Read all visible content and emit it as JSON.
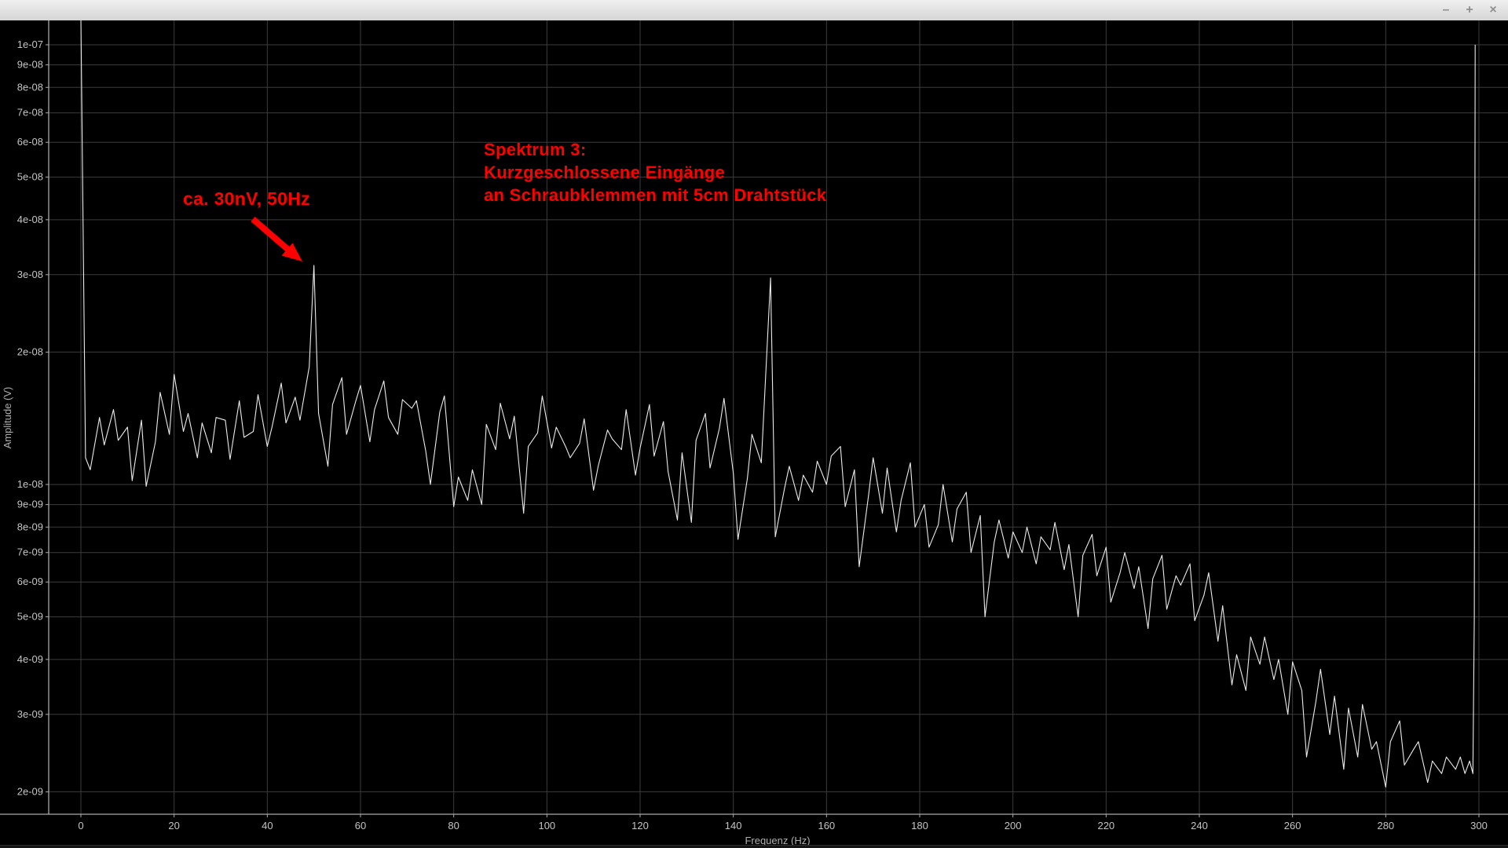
{
  "window": {
    "titlebar": {
      "minimize_label": "–",
      "maximize_label": "+",
      "close_label": "×"
    }
  },
  "annotations": {
    "color": "#ff0000",
    "peak_label": {
      "text": "ca. 30nV, 50Hz"
    },
    "title_block": {
      "lines": [
        "Spektrum 3:",
        "Kurzgeschlossene Eingänge",
        "an Schraubklemmen mit 5cm Drahtstück"
      ]
    }
  },
  "chart_data": {
    "type": "line",
    "title": "",
    "xlabel": "Frequenz (Hz)",
    "ylabel": "Amplitude (V)",
    "grid": true,
    "y_scale": "log",
    "xlim": [
      -7,
      306
    ],
    "ylim": [
      1.8e-09,
      1.15e-07
    ],
    "colors": {
      "background": "#000000",
      "trace": "#ebebeb",
      "grid": "#3c3c3c",
      "axis": "#aaaaaa",
      "tick_label": "#c4c4c4",
      "axis_title": "#b0b0b0"
    },
    "x_ticks": [
      {
        "value": 0,
        "label": "0"
      },
      {
        "value": 20,
        "label": "20"
      },
      {
        "value": 40,
        "label": "40"
      },
      {
        "value": 60,
        "label": "60"
      },
      {
        "value": 80,
        "label": "80"
      },
      {
        "value": 100,
        "label": "100"
      },
      {
        "value": 120,
        "label": "120"
      },
      {
        "value": 140,
        "label": "140"
      },
      {
        "value": 160,
        "label": "160"
      },
      {
        "value": 180,
        "label": "180"
      },
      {
        "value": 200,
        "label": "200"
      },
      {
        "value": 220,
        "label": "220"
      },
      {
        "value": 240,
        "label": "240"
      },
      {
        "value": 260,
        "label": "260"
      },
      {
        "value": 280,
        "label": "280"
      },
      {
        "value": 300,
        "label": "300"
      }
    ],
    "y_ticks": [
      {
        "value": 1e-07,
        "label": "1e-07"
      },
      {
        "value": 9e-08,
        "label": "9e-08"
      },
      {
        "value": 8e-08,
        "label": "8e-08"
      },
      {
        "value": 7e-08,
        "label": "7e-08"
      },
      {
        "value": 6e-08,
        "label": "6e-08"
      },
      {
        "value": 5e-08,
        "label": "5e-08"
      },
      {
        "value": 4e-08,
        "label": "4e-08"
      },
      {
        "value": 3e-08,
        "label": "3e-08"
      },
      {
        "value": 2e-08,
        "label": "2e-08"
      },
      {
        "value": 1e-08,
        "label": "1e-08"
      },
      {
        "value": 9e-09,
        "label": "9e-09"
      },
      {
        "value": 8e-09,
        "label": "8e-09"
      },
      {
        "value": 7e-09,
        "label": "7e-09"
      },
      {
        "value": 6e-09,
        "label": "6e-09"
      },
      {
        "value": 5e-09,
        "label": "5e-09"
      },
      {
        "value": 4e-09,
        "label": "4e-09"
      },
      {
        "value": 3e-09,
        "label": "3e-09"
      },
      {
        "value": 2e-09,
        "label": "2e-09"
      }
    ],
    "series": [
      {
        "name": "Spektrum 3",
        "color": "#ebebeb",
        "points_hz_nv": [
          [
            0,
            115
          ],
          [
            1,
            11.5
          ],
          [
            2,
            10.8
          ],
          [
            4,
            14.2
          ],
          [
            5,
            12.3
          ],
          [
            7,
            14.8
          ],
          [
            8,
            12.6
          ],
          [
            10,
            13.5
          ],
          [
            11,
            10.2
          ],
          [
            13,
            14.0
          ],
          [
            14,
            9.9
          ],
          [
            16,
            12.5
          ],
          [
            17,
            16.2
          ],
          [
            19,
            13.0
          ],
          [
            20,
            17.8
          ],
          [
            22,
            13.2
          ],
          [
            23,
            14.5
          ],
          [
            25,
            11.5
          ],
          [
            26,
            13.8
          ],
          [
            28,
            11.8
          ],
          [
            29,
            14.2
          ],
          [
            31,
            14.0
          ],
          [
            32,
            11.4
          ],
          [
            34,
            15.5
          ],
          [
            35,
            12.8
          ],
          [
            37,
            13.2
          ],
          [
            38,
            16.0
          ],
          [
            40,
            12.2
          ],
          [
            41,
            13.5
          ],
          [
            43,
            17.0
          ],
          [
            44,
            13.8
          ],
          [
            46,
            15.8
          ],
          [
            47,
            14.0
          ],
          [
            49,
            18.5
          ],
          [
            50,
            31.5
          ],
          [
            51,
            14.5
          ],
          [
            53,
            11.0
          ],
          [
            54,
            15.2
          ],
          [
            56,
            17.5
          ],
          [
            57,
            13.0
          ],
          [
            59,
            15.5
          ],
          [
            60,
            16.8
          ],
          [
            62,
            12.5
          ],
          [
            63,
            14.8
          ],
          [
            65,
            17.2
          ],
          [
            66,
            14.2
          ],
          [
            68,
            13.0
          ],
          [
            69,
            15.6
          ],
          [
            71,
            14.9
          ],
          [
            72,
            15.5
          ],
          [
            74,
            11.9
          ],
          [
            75,
            10.0
          ],
          [
            77,
            14.6
          ],
          [
            78,
            15.9
          ],
          [
            80,
            8.9
          ],
          [
            81,
            10.4
          ],
          [
            83,
            9.2
          ],
          [
            84,
            10.8
          ],
          [
            86,
            9.0
          ],
          [
            87,
            13.7
          ],
          [
            89,
            12.0
          ],
          [
            90,
            15.3
          ],
          [
            92,
            12.7
          ],
          [
            93,
            14.3
          ],
          [
            95,
            8.6
          ],
          [
            96,
            12.2
          ],
          [
            98,
            13.1
          ],
          [
            99,
            15.9
          ],
          [
            101,
            12.1
          ],
          [
            102,
            13.5
          ],
          [
            104,
            12.2
          ],
          [
            105,
            11.5
          ],
          [
            107,
            12.4
          ],
          [
            108,
            14.1
          ],
          [
            110,
            9.7
          ],
          [
            111,
            11.0
          ],
          [
            113,
            13.3
          ],
          [
            114,
            12.7
          ],
          [
            116,
            12.0
          ],
          [
            117,
            14.8
          ],
          [
            119,
            10.5
          ],
          [
            120,
            12.1
          ],
          [
            122,
            15.2
          ],
          [
            123,
            11.6
          ],
          [
            125,
            13.9
          ],
          [
            126,
            10.7
          ],
          [
            128,
            8.3
          ],
          [
            129,
            11.8
          ],
          [
            131,
            8.2
          ],
          [
            132,
            12.6
          ],
          [
            134,
            14.5
          ],
          [
            135,
            10.9
          ],
          [
            137,
            13.4
          ],
          [
            138,
            15.7
          ],
          [
            140,
            10.6
          ],
          [
            141,
            7.5
          ],
          [
            143,
            10.3
          ],
          [
            144,
            13.0
          ],
          [
            146,
            11.2
          ],
          [
            148,
            29.5
          ],
          [
            149,
            7.6
          ],
          [
            151,
            9.8
          ],
          [
            152,
            11.0
          ],
          [
            154,
            9.2
          ],
          [
            155,
            10.5
          ],
          [
            157,
            9.6
          ],
          [
            158,
            11.3
          ],
          [
            160,
            10.0
          ],
          [
            161,
            11.6
          ],
          [
            163,
            12.2
          ],
          [
            164,
            8.9
          ],
          [
            166,
            10.8
          ],
          [
            167,
            6.5
          ],
          [
            169,
            9.4
          ],
          [
            170,
            11.5
          ],
          [
            172,
            8.6
          ],
          [
            173,
            10.9
          ],
          [
            175,
            7.8
          ],
          [
            176,
            9.2
          ],
          [
            178,
            11.2
          ],
          [
            179,
            8.0
          ],
          [
            181,
            9.0
          ],
          [
            182,
            7.2
          ],
          [
            184,
            8.1
          ],
          [
            185,
            10.0
          ],
          [
            187,
            7.4
          ],
          [
            188,
            8.8
          ],
          [
            190,
            9.6
          ],
          [
            191,
            7.0
          ],
          [
            193,
            8.5
          ],
          [
            194,
            5.0
          ],
          [
            196,
            7.4
          ],
          [
            197,
            8.3
          ],
          [
            199,
            6.8
          ],
          [
            200,
            7.8
          ],
          [
            202,
            7.0
          ],
          [
            203,
            8.0
          ],
          [
            205,
            6.6
          ],
          [
            206,
            7.6
          ],
          [
            208,
            7.1
          ],
          [
            209,
            8.2
          ],
          [
            211,
            6.4
          ],
          [
            212,
            7.3
          ],
          [
            214,
            5.0
          ],
          [
            215,
            6.9
          ],
          [
            217,
            7.7
          ],
          [
            218,
            6.2
          ],
          [
            220,
            7.2
          ],
          [
            221,
            5.4
          ],
          [
            223,
            6.3
          ],
          [
            224,
            7.0
          ],
          [
            226,
            5.8
          ],
          [
            227,
            6.5
          ],
          [
            229,
            4.7
          ],
          [
            230,
            6.1
          ],
          [
            232,
            6.9
          ],
          [
            233,
            5.2
          ],
          [
            235,
            6.2
          ],
          [
            236,
            5.9
          ],
          [
            238,
            6.6
          ],
          [
            239,
            4.9
          ],
          [
            241,
            5.6
          ],
          [
            242,
            6.3
          ],
          [
            244,
            4.4
          ],
          [
            245,
            5.3
          ],
          [
            247,
            3.5
          ],
          [
            248,
            4.1
          ],
          [
            250,
            3.4
          ],
          [
            251,
            4.5
          ],
          [
            253,
            3.9
          ],
          [
            254,
            4.5
          ],
          [
            256,
            3.6
          ],
          [
            257,
            4.0
          ],
          [
            259,
            3.0
          ],
          [
            260,
            3.95
          ],
          [
            262,
            3.4
          ],
          [
            263,
            2.4
          ],
          [
            265,
            3.2
          ],
          [
            266,
            3.8
          ],
          [
            268,
            2.7
          ],
          [
            269,
            3.3
          ],
          [
            271,
            2.25
          ],
          [
            272,
            3.1
          ],
          [
            274,
            2.4
          ],
          [
            275,
            3.16
          ],
          [
            277,
            2.5
          ],
          [
            278,
            2.6
          ],
          [
            280,
            2.05
          ],
          [
            281,
            2.6
          ],
          [
            283,
            2.9
          ],
          [
            284,
            2.3
          ],
          [
            286,
            2.5
          ],
          [
            287,
            2.6
          ],
          [
            289,
            2.1
          ],
          [
            290,
            2.35
          ],
          [
            292,
            2.2
          ],
          [
            293,
            2.4
          ],
          [
            295,
            2.25
          ],
          [
            296,
            2.4
          ],
          [
            297,
            2.2
          ],
          [
            298,
            2.35
          ],
          [
            298.7,
            2.2
          ],
          [
            299,
            5.0
          ],
          [
            299.2,
            100
          ]
        ]
      }
    ],
    "peak_annotations": [
      {
        "frequency_hz": 50,
        "amplitude": "ca. 30nV"
      },
      {
        "frequency_hz": 148,
        "amplitude": "ca. 30nV"
      }
    ]
  }
}
